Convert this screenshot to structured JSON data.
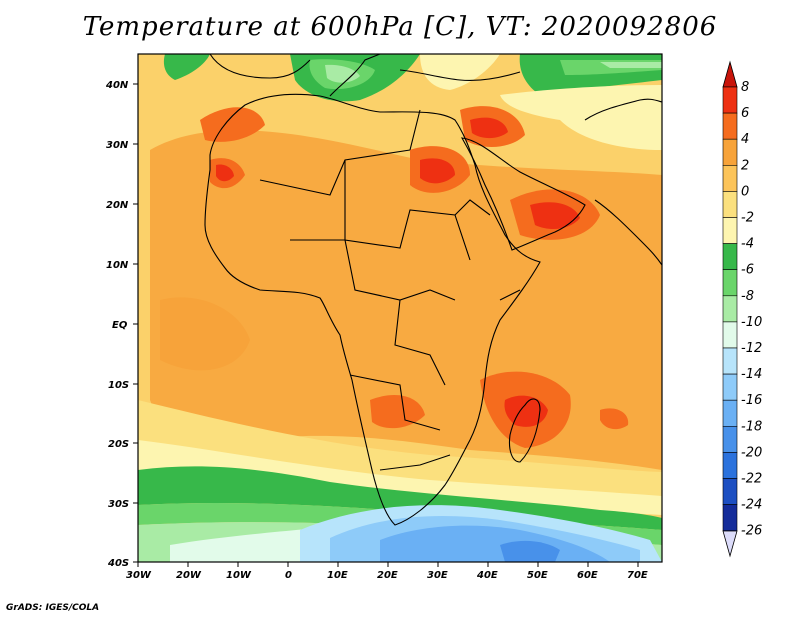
{
  "title": "Temperature at 600hPa [C], VT: 2020092806",
  "credit": "GrADS: IGES/COLA",
  "map": {
    "lat_labels": [
      "40N",
      "30N",
      "20N",
      "10N",
      "EQ",
      "10S",
      "20S",
      "30S",
      "40S"
    ],
    "lon_labels": [
      "30W",
      "20W",
      "10W",
      "0",
      "10E",
      "20E",
      "30E",
      "40E",
      "50E",
      "60E",
      "70E"
    ]
  },
  "colorbar": {
    "labels": [
      "8",
      "6",
      "4",
      "2",
      "0",
      "-2",
      "-4",
      "-6",
      "-8",
      "-10",
      "-12",
      "-14",
      "-16",
      "-18",
      "-20",
      "-22",
      "-24",
      "-26"
    ],
    "colors": {
      "above_8": "#c8140a",
      "6_8": "#ee3012",
      "4_6": "#f56c1e",
      "2_4": "#f7a33a",
      "0_2": "#fcc45a",
      "m2_0": "#fbe07e",
      "m4_m2": "#fdf5b0",
      "m6_m4": "#37b84a",
      "m8_m6": "#6ad56a",
      "m10_m8": "#a9eba5",
      "m12_m10": "#e2fbea",
      "m14_m12": "#b7e4fb",
      "m16_m14": "#8ecbf9",
      "m18_m16": "#6ab0f4",
      "m20_m18": "#4891ea",
      "m22_m20": "#2b72dd",
      "m24_m22": "#1d4fc2",
      "m26_m24": "#142c9a",
      "below_m26": "#dcdcfa"
    }
  }
}
